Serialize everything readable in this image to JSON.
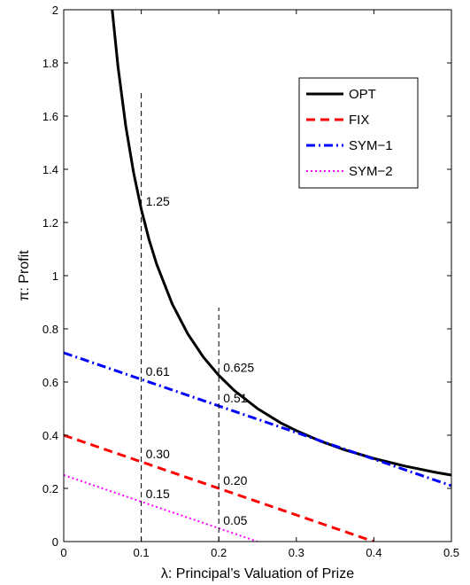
{
  "chart_data": {
    "type": "line",
    "xlabel": "λ: Principal’s Valuation of Prize",
    "ylabel": "π: Profit",
    "xlim": [
      0,
      0.5
    ],
    "ylim": [
      0,
      2
    ],
    "x_ticks": [
      0,
      0.1,
      0.2,
      0.3,
      0.4,
      0.5
    ],
    "x_tick_labels": [
      "0",
      "0.1",
      "0.2",
      "0.3",
      "0.4",
      "0.5"
    ],
    "y_ticks": [
      0,
      0.2,
      0.4,
      0.6,
      0.8,
      1,
      1.2,
      1.4,
      1.6,
      1.8,
      2
    ],
    "y_tick_labels": [
      "0",
      "0.2",
      "0.4",
      "0.6",
      "0.8",
      "1",
      "1.2",
      "1.4",
      "1.6",
      "1.8",
      "2"
    ],
    "grid": false,
    "legend_position": "top-right",
    "series": [
      {
        "name": "OPT",
        "color": "#000000",
        "style": "solid",
        "x": [
          0.0625,
          0.07,
          0.08,
          0.09,
          0.1,
          0.11,
          0.12,
          0.14,
          0.16,
          0.18,
          0.2,
          0.22,
          0.25,
          0.28,
          0.3,
          0.33,
          0.36,
          0.4,
          0.44,
          0.48,
          0.5
        ],
        "y": [
          2.0,
          1.786,
          1.5625,
          1.389,
          1.25,
          1.136,
          1.042,
          0.893,
          0.781,
          0.694,
          0.625,
          0.568,
          0.5,
          0.446,
          0.417,
          0.379,
          0.347,
          0.3125,
          0.284,
          0.26,
          0.25
        ]
      },
      {
        "name": "FIX",
        "color": "#ff0000",
        "style": "dashed",
        "x": [
          0,
          0.4
        ],
        "y": [
          0.4,
          0
        ]
      },
      {
        "name": "SYM−1",
        "color": "#0000ff",
        "style": "dashdot",
        "x": [
          0,
          0.5
        ],
        "y": [
          0.71,
          0.21
        ]
      },
      {
        "name": "SYM−2",
        "color": "#ff00ff",
        "style": "dotted",
        "x": [
          0,
          0.25
        ],
        "y": [
          0.25,
          0
        ]
      }
    ],
    "vertical_lines": [
      {
        "x": 0.1,
        "y_top": 1.69
      },
      {
        "x": 0.2,
        "y_top": 0.88
      }
    ],
    "annotations": [
      {
        "text": "1.25",
        "x": 0.1,
        "y": 1.25
      },
      {
        "text": "0.61",
        "x": 0.1,
        "y": 0.61
      },
      {
        "text": "0.30",
        "x": 0.1,
        "y": 0.3
      },
      {
        "text": "0.15",
        "x": 0.1,
        "y": 0.15
      },
      {
        "text": "0.625",
        "x": 0.2,
        "y": 0.625
      },
      {
        "text": "0.51",
        "x": 0.2,
        "y": 0.51
      },
      {
        "text": "0.20",
        "x": 0.2,
        "y": 0.2
      },
      {
        "text": "0.05",
        "x": 0.2,
        "y": 0.05
      }
    ]
  }
}
